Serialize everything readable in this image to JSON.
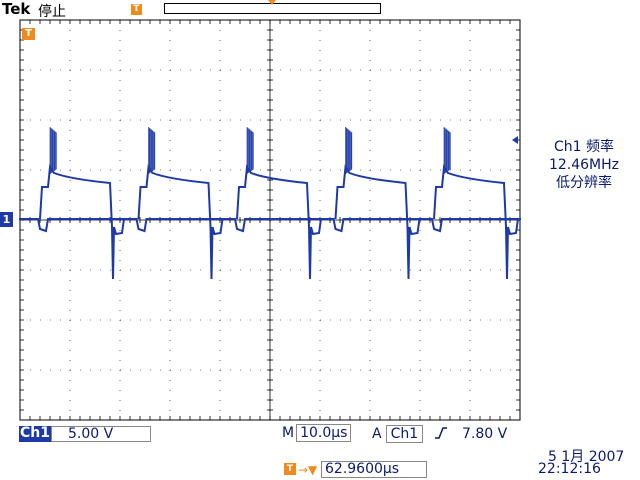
{
  "header": {
    "brand": "Tek",
    "status": "停止",
    "trigger_position_icon": "T",
    "record_view": "record-position-bar"
  },
  "waveform": {
    "channel_marker": "1",
    "trigger_marker": "T",
    "color": "#1d3aa8",
    "grid": {
      "divisions_x": 10,
      "divisions_y": 8
    }
  },
  "measurement": {
    "line1": "Ch1 频率",
    "line2": "12.46MHz",
    "line3": "低分辨率"
  },
  "footer": {
    "ch1_label": "Ch1",
    "ch1_scale": "5.00 V",
    "timebase_prefix": "M",
    "timebase": "10.0µs",
    "trigger_prefix": "A",
    "trigger_source": "Ch1",
    "trigger_slope": "rising-edge-icon",
    "trigger_level": "7.80 V",
    "delay_icon": "T",
    "delay_arrow": "→▼",
    "delay_value": "62.9600µs",
    "date": "5 1月  2007",
    "time": "22:12:16"
  },
  "colors": {
    "accent": "#f08a1c",
    "channel": "#1d3aa8",
    "grid": "#000000",
    "text": "#0a1a6e"
  }
}
